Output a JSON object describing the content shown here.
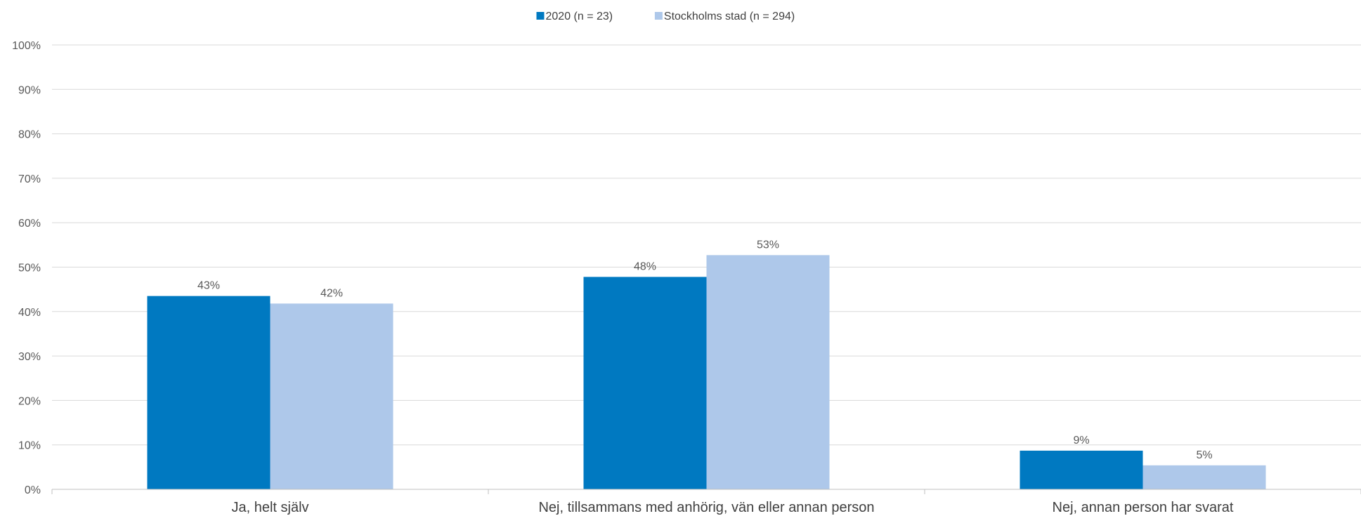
{
  "chart_data": {
    "type": "bar",
    "categories": [
      "Ja, helt själv",
      "Nej, tillsammans med anhörig, vän eller annan person",
      "Nej, annan person har svarat"
    ],
    "series": [
      {
        "name": "2020  (n = 23)",
        "values": [
          43.5,
          47.8,
          8.7
        ],
        "labels": [
          "43%",
          "48%",
          "9%"
        ],
        "color": "#0079c1"
      },
      {
        "name": "Stockholms stad  (n = 294)",
        "values": [
          41.8,
          52.7,
          5.4
        ],
        "labels": [
          "42%",
          "53%",
          "5%"
        ],
        "color": "#aec8ea"
      }
    ],
    "yticks": [
      "0%",
      "10%",
      "20%",
      "30%",
      "40%",
      "50%",
      "60%",
      "70%",
      "80%",
      "90%",
      "100%"
    ],
    "ylim": [
      0,
      100
    ],
    "grid": true,
    "legend_position": "top-center"
  }
}
